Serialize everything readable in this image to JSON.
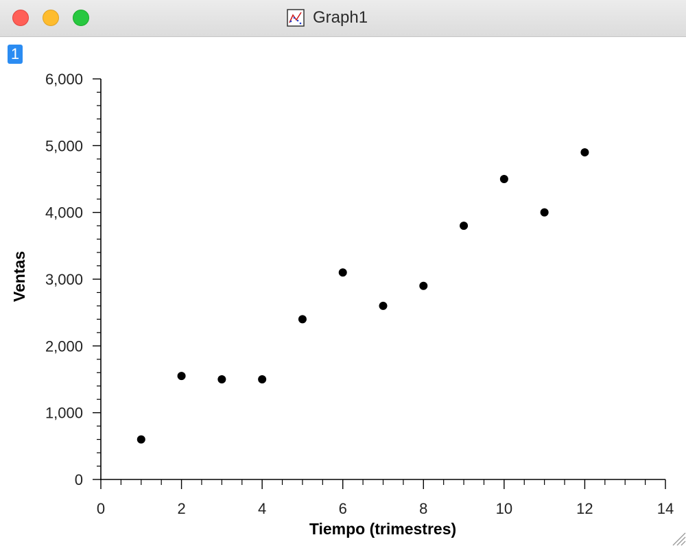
{
  "window": {
    "title": "Graph1",
    "badge": "1",
    "icon": "graph-document-icon"
  },
  "colors": {
    "close": "#ff5f57",
    "minimize": "#febc2e",
    "zoom": "#28c840",
    "badge": "#2b8cf2",
    "marker": "#000000"
  },
  "chart_data": {
    "type": "scatter",
    "title": "",
    "xlabel": "Tiempo (trimestres)",
    "ylabel": "Ventas",
    "xlim": [
      0,
      14
    ],
    "ylim": [
      0,
      6000
    ],
    "xticks": [
      0,
      2,
      4,
      6,
      8,
      10,
      12,
      14
    ],
    "xtick_labels": [
      "0",
      "2",
      "4",
      "6",
      "8",
      "10",
      "12",
      "14"
    ],
    "yticks": [
      0,
      1000,
      2000,
      3000,
      4000,
      5000,
      6000
    ],
    "ytick_labels": [
      "0",
      "1,000",
      "2,000",
      "3,000",
      "4,000",
      "5,000",
      "6,000"
    ],
    "grid": false,
    "series": [
      {
        "x": [
          1,
          2,
          3,
          4,
          5,
          6,
          7,
          8,
          9,
          10,
          11,
          12
        ],
        "y": [
          600,
          1550,
          1500,
          1500,
          2400,
          3100,
          2600,
          2900,
          3800,
          4500,
          4000,
          4900
        ]
      }
    ]
  }
}
